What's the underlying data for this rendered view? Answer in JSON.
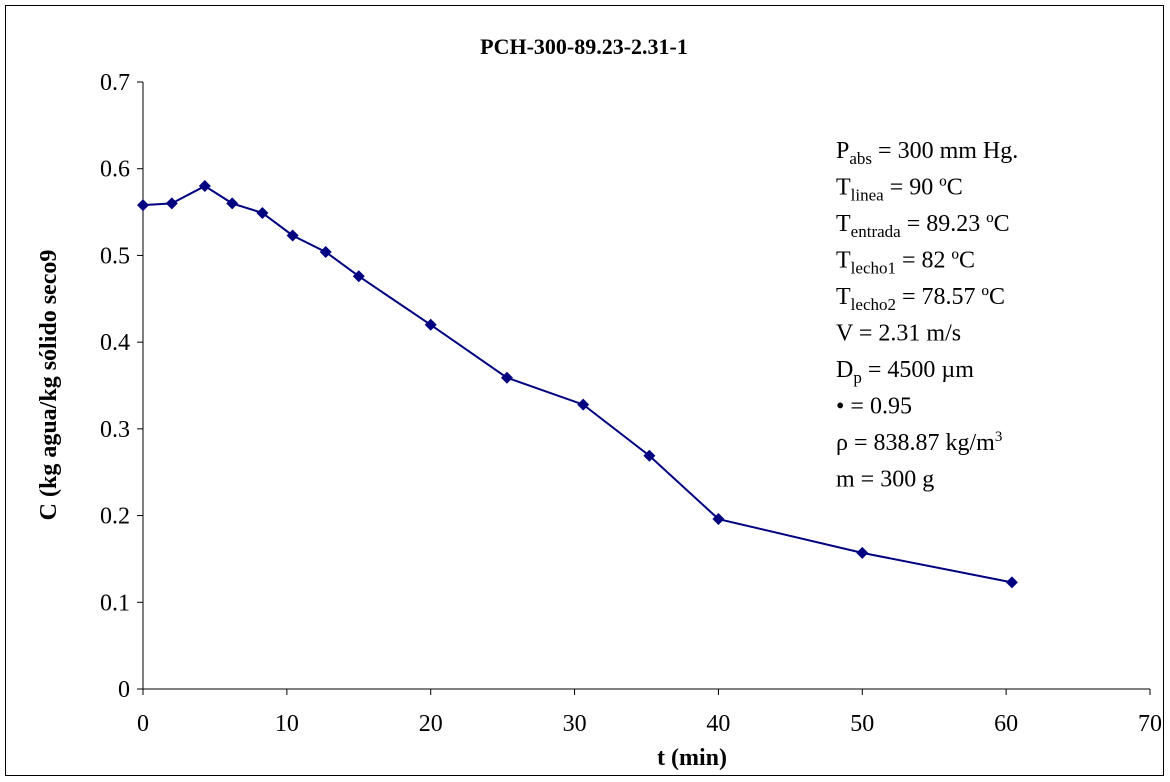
{
  "chart_data": {
    "type": "line",
    "title": "PCH-300-89.23-2.31-1",
    "xlabel": "t (min)",
    "ylabel": "C (kg agua/kg sólido seco9",
    "x": [
      0,
      2,
      4.3,
      6.2,
      8.3,
      10.4,
      12.7,
      15,
      20,
      25.3,
      30.6,
      35.2,
      40,
      50,
      60.4
    ],
    "series": [
      {
        "color": "#000080",
        "values": [
          0.558,
          0.56,
          0.58,
          0.56,
          0.549,
          0.523,
          0.504,
          0.476,
          0.42,
          0.359,
          0.328,
          0.269,
          0.196,
          0.157,
          0.123
        ]
      }
    ],
    "xlim": [
      0,
      70
    ],
    "xticks": [
      0,
      10,
      20,
      30,
      40,
      50,
      60,
      70
    ],
    "ylim": [
      0,
      0.7
    ],
    "yticks": [
      0,
      0.1,
      0.2,
      0.3,
      0.4,
      0.5,
      0.6,
      0.7
    ],
    "grid": false,
    "annotations": [
      {
        "main": "P",
        "sub": "abs",
        "after": " = 300 mm Hg."
      },
      {
        "main": "T",
        "sub": "linea",
        "after": " = 90 ºC"
      },
      {
        "main": "T",
        "sub": "entrada",
        "after": " = 89.23 ºC"
      },
      {
        "main": "T",
        "sub": "lecho1",
        "after": " = 82 ºC"
      },
      {
        "main": "T",
        "sub": "lecho2",
        "after": " = 78.57 ºC"
      },
      {
        "main": "V = 2.31 m/s"
      },
      {
        "main": "D",
        "sub": "p",
        "after": " = 4500 µm"
      },
      {
        "main": "• = 0.95"
      },
      {
        "main": "ρ = 838.87 kg/m",
        "sup": "3"
      },
      {
        "main": "m = 300 g"
      }
    ]
  }
}
